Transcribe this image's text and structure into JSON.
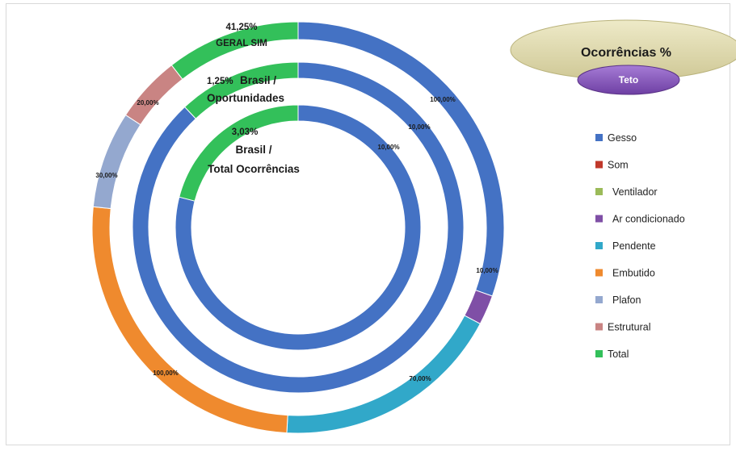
{
  "chart_data": {
    "type": "donut",
    "title": "Ocorrências %",
    "subtitle": "Teto",
    "legend": [
      {
        "name": "Gesso",
        "color": "#4472c4"
      },
      {
        "name": "Som",
        "color": "#c0392b"
      },
      {
        "name": "Ventilador",
        "color": "#9bbb59"
      },
      {
        "name": "Ar condicionado",
        "color": "#7f4fa6"
      },
      {
        "name": "Pendente",
        "color": "#31a8c9"
      },
      {
        "name": "Embutido",
        "color": "#ef8a2e"
      },
      {
        "name": "Plafon",
        "color": "#94a8cf"
      },
      {
        "name": "Estrutural",
        "color": "#c98483"
      },
      {
        "name": "Total",
        "color": "#33c05a"
      }
    ],
    "rings": [
      {
        "name": "GERAL SIM",
        "center_value": "41,25%",
        "center_label": "GERAL SIM",
        "slices": [
          {
            "category": "Gesso",
            "value": 26.0,
            "label": "100,00%"
          },
          {
            "category": "Ar condicionado",
            "value": 2.0,
            "label": "10,00%"
          },
          {
            "category": "Pendente",
            "value": 15.5,
            "label": "70,00%"
          },
          {
            "category": "Embutido",
            "value": 22.0,
            "label": "100,00%"
          },
          {
            "category": "Plafon",
            "value": 6.5,
            "label": "30,00%"
          },
          {
            "category": "Estrutural",
            "value": 4.5,
            "label": "20,00%"
          },
          {
            "category": "Total",
            "value": 9.0,
            "label": ""
          }
        ]
      },
      {
        "name": "Brasil / Oportunidades",
        "center_value": "1,25%",
        "center_label": "Brasil / Oportunidades",
        "slices": [
          {
            "category": "Gesso",
            "value": 88.0,
            "label": "10,00%"
          },
          {
            "category": "Total",
            "value": 12.0,
            "label": ""
          }
        ]
      },
      {
        "name": "Brasil / Total Ocorrências",
        "center_value": "3,03%",
        "center_label": "Brasil / Total Ocorrências",
        "slices": [
          {
            "category": "Gesso",
            "value": 79.0,
            "label": "10,00%"
          },
          {
            "category": "Total",
            "value": 21.0,
            "label": ""
          }
        ]
      }
    ]
  },
  "labels": {
    "outer_value": "41,25%",
    "outer_name": "GERAL SIM",
    "middle_value": "1,25%",
    "middle_name_1": "Brasil /",
    "middle_name_2": "Oportunidades",
    "inner_value": "3,03%",
    "inner_name_1": "Brasil /",
    "inner_name_2": "Total Ocorrências"
  }
}
